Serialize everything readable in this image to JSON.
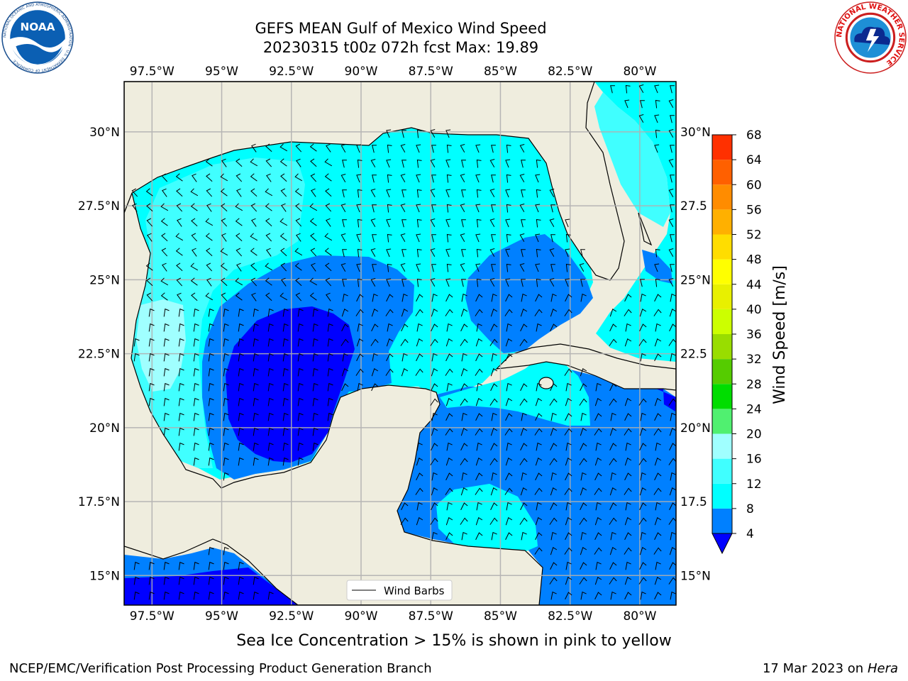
{
  "header": {
    "title_line1": "GEFS MEAN Gulf of Mexico Wind Speed",
    "title_line2": "20230315 t00z 072h fcst   Max: 19.89"
  },
  "logos": {
    "left": "NOAA",
    "left_ring_text": "NATIONAL OCEANIC AND ATMOSPHERIC ADMINISTRATION · U.S. DEPARTMENT OF COMMERCE",
    "right_ring_text": "NATIONAL WEATHER SERVICE"
  },
  "map": {
    "lon_range": [
      -98.5,
      -78.7
    ],
    "lat_range": [
      14.0,
      31.7
    ],
    "lon_ticks": [
      "97.5°W",
      "95°W",
      "92.5°W",
      "90°W",
      "87.5°W",
      "85°W",
      "82.5°W",
      "80°W"
    ],
    "lon_tick_values": [
      -97.5,
      -95,
      -92.5,
      -90,
      -87.5,
      -85,
      -82.5,
      -80
    ],
    "lat_ticks_left": [
      "30°N",
      "27.5°N",
      "25°N",
      "22.5°N",
      "20°N",
      "17.5°N",
      "15°N"
    ],
    "lat_ticks_right": [
      "30°N",
      "27.5",
      "25°N",
      "22.5",
      "20°N",
      "17.5",
      "15°N"
    ],
    "lat_tick_values": [
      30,
      27.5,
      25,
      22.5,
      20,
      17.5,
      15
    ],
    "land_color": "#efedde",
    "grid": true,
    "legend_label": "Wind Barbs"
  },
  "colorbar": {
    "label": "Wind Speed [m/s]",
    "levels": [
      "4",
      "8",
      "12",
      "16",
      "20",
      "24",
      "28",
      "32",
      "36",
      "40",
      "44",
      "48",
      "52",
      "56",
      "60",
      "64",
      "68"
    ],
    "colors": [
      "#0080ff",
      "#00ffff",
      "#40ffff",
      "#a0ffff",
      "#50f070",
      "#00dd00",
      "#55cc00",
      "#99dd00",
      "#ccff00",
      "#e8f000",
      "#ffff00",
      "#ffdd00",
      "#ffb000",
      "#ff8c00",
      "#ff6000",
      "#ff3000",
      "#ff0000"
    ],
    "under_color": "#0000ff"
  },
  "speed_colors": {
    "lt4": "#0000ff",
    "s4_8": "#0080ff",
    "s8_12": "#00ffff",
    "s12_16": "#40ffff",
    "s16_20": "#a0ffff"
  },
  "footer": {
    "sea_ice_note": "Sea Ice Concentration > 15% is shown in pink to yellow",
    "credit": "NCEP/EMC/Verification Post Processing Product Generation Branch",
    "date": "17 Mar 2023 on",
    "machine": "Hera"
  }
}
